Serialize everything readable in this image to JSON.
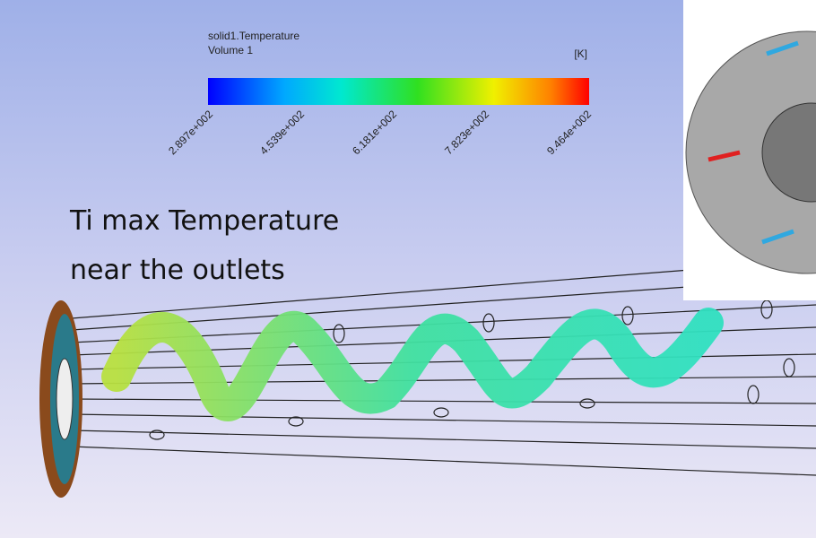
{
  "legend": {
    "title": "solid1.Temperature",
    "subtitle": "Volume 1",
    "unit": "[K]",
    "ticks": [
      "2.897e+002",
      "4.539e+002",
      "6.181e+002",
      "7.823e+002",
      "9.464e+002"
    ]
  },
  "annotation": {
    "lines": [
      "Ti max Temperature",
      "near the outlets"
    ]
  }
}
